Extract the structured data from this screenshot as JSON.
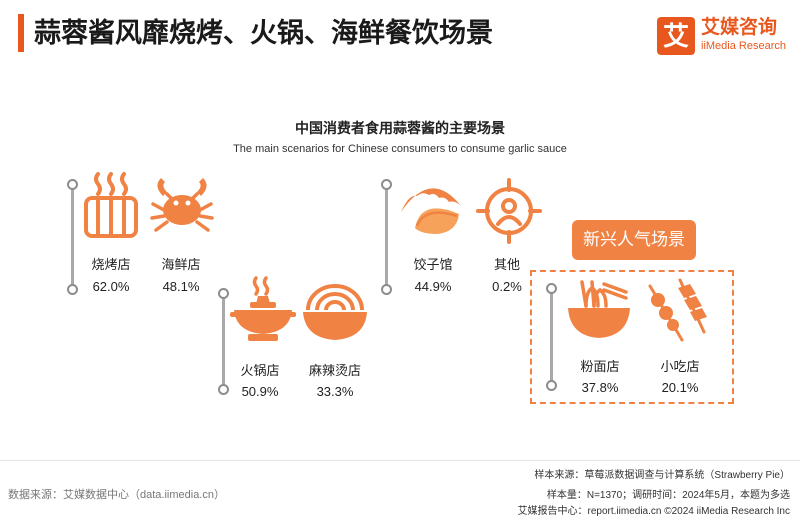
{
  "page": {
    "title": "蒜蓉酱风靡烧烤、火锅、海鲜餐饮场景"
  },
  "logo": {
    "mark": "艾",
    "cn": "艾媒咨询",
    "en": "iiMedia Research"
  },
  "colors": {
    "accent": "#e8571e",
    "icon": "#f08344",
    "line": "#a9a9a9"
  },
  "badge": {
    "label": "新兴人气场景"
  },
  "chart_data": {
    "type": "table",
    "title": "中国消费者食用蒜蓉酱的主要场景",
    "subtitle": "The main scenarios for Chinese consumers to consume garlic sauce",
    "items": [
      {
        "name": "烧烤店",
        "value": "62.0%",
        "icon": "bbq-grill-icon"
      },
      {
        "name": "海鲜店",
        "value": "48.1%",
        "icon": "crab-icon"
      },
      {
        "name": "火锅店",
        "value": "50.9%",
        "icon": "hotpot-icon"
      },
      {
        "name": "麻辣烫店",
        "value": "33.3%",
        "icon": "soup-bowl-icon"
      },
      {
        "name": "饺子馆",
        "value": "44.9%",
        "icon": "dumpling-icon"
      },
      {
        "name": "其他",
        "value": "0.2%",
        "icon": "target-person-icon"
      },
      {
        "name": "粉面店",
        "value": "37.8%",
        "icon": "noodle-bowl-icon"
      },
      {
        "name": "小吃店",
        "value": "20.1%",
        "icon": "skewer-icon"
      }
    ]
  },
  "footer": {
    "source": "数据来源：艾媒数据中心（data.iimedia.cn）",
    "sample_source": "样本来源：草莓派数据调查与计算系统（Strawberry Pie）",
    "sample_size": "样本量：N=1370；调研时间：2024年5月，本题为多选",
    "copyright": "艾媒报告中心：report.iimedia.cn  ©2024  iiMedia Research  Inc"
  }
}
